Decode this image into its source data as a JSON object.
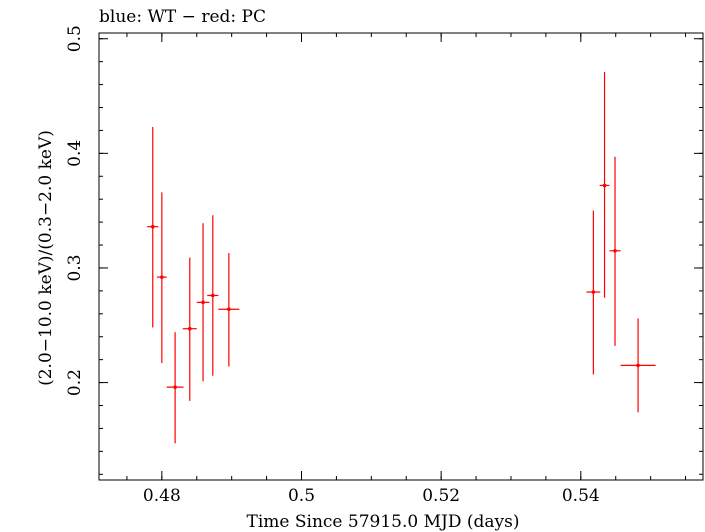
{
  "chart_data": {
    "type": "scatter",
    "title": "blue: WT − red: PC",
    "xlabel": "Time Since 57915.0 MJD (days)",
    "ylabel": "(2.0−10.0 keV)/(0.3−2.0 keV)",
    "xlim": [
      0.471,
      0.5575
    ],
    "ylim": [
      0.115,
      0.505
    ],
    "xticks": [
      0.48,
      0.5,
      0.52,
      0.54
    ],
    "xtick_labels": [
      "0.48",
      "0.5",
      "0.52",
      "0.54"
    ],
    "yticks": [
      0.2,
      0.3,
      0.4,
      0.5
    ],
    "ytick_labels": [
      "0.2",
      "0.3",
      "0.4",
      "0.5"
    ],
    "grid": false,
    "colors": {
      "PC": "#ff0000",
      "WT": "#0000ff",
      "axes": "#000000"
    },
    "series": [
      {
        "name": "PC",
        "points": [
          {
            "x": 0.4787,
            "xerr": 0.0008,
            "y": 0.336,
            "ylo": 0.248,
            "yhi": 0.423
          },
          {
            "x": 0.48,
            "xerr": 0.0007,
            "y": 0.292,
            "ylo": 0.217,
            "yhi": 0.366
          },
          {
            "x": 0.4819,
            "xerr": 0.0012,
            "y": 0.196,
            "ylo": 0.147,
            "yhi": 0.244
          },
          {
            "x": 0.484,
            "xerr": 0.001,
            "y": 0.247,
            "ylo": 0.184,
            "yhi": 0.309
          },
          {
            "x": 0.4859,
            "xerr": 0.0009,
            "y": 0.27,
            "ylo": 0.201,
            "yhi": 0.339
          },
          {
            "x": 0.4873,
            "xerr": 0.0008,
            "y": 0.276,
            "ylo": 0.206,
            "yhi": 0.346
          },
          {
            "x": 0.4896,
            "xerr": 0.0015,
            "y": 0.264,
            "ylo": 0.214,
            "yhi": 0.313
          },
          {
            "x": 0.5418,
            "xerr": 0.001,
            "y": 0.279,
            "ylo": 0.207,
            "yhi": 0.35
          },
          {
            "x": 0.5434,
            "xerr": 0.0007,
            "y": 0.372,
            "ylo": 0.274,
            "yhi": 0.471
          },
          {
            "x": 0.5449,
            "xerr": 0.0008,
            "y": 0.315,
            "ylo": 0.232,
            "yhi": 0.397
          },
          {
            "x": 0.5482,
            "xerr": 0.0025,
            "y": 0.215,
            "ylo": 0.174,
            "yhi": 0.256
          }
        ]
      }
    ]
  }
}
